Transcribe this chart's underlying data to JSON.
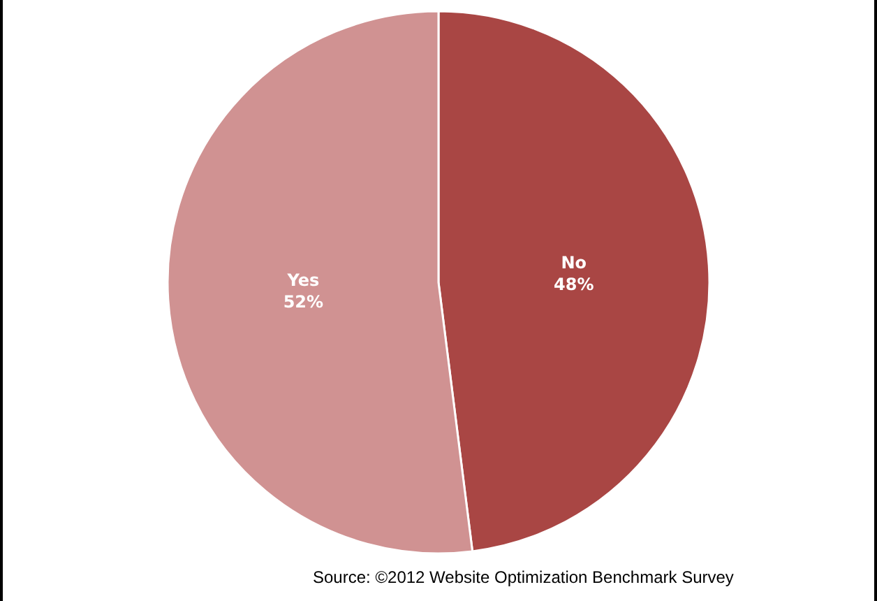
{
  "chart_data": {
    "type": "pie",
    "categories": [
      "No",
      "Yes"
    ],
    "values": [
      48,
      52
    ],
    "value_labels": [
      "48%",
      "52%"
    ],
    "colors": [
      "#a94644",
      "#d09292"
    ],
    "annotations": [
      "Source: ©2012 Website Optimization Benchmark Survey"
    ]
  }
}
